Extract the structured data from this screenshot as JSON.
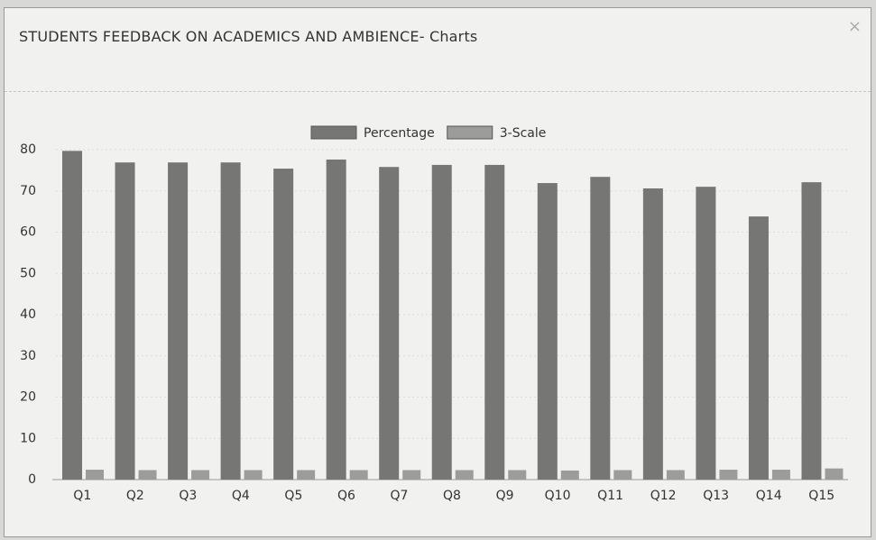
{
  "modal": {
    "title": "STUDENTS FEEDBACK ON ACADEMICS AND AMBIENCE- Charts",
    "close": "×"
  },
  "chart_data": {
    "type": "bar",
    "categories": [
      "Q1",
      "Q2",
      "Q3",
      "Q4",
      "Q5",
      "Q6",
      "Q7",
      "Q8",
      "Q9",
      "Q10",
      "Q11",
      "Q12",
      "Q13",
      "Q14",
      "Q15"
    ],
    "series": [
      {
        "name": "Percentage",
        "color": "#767674",
        "values": [
          79.7,
          76.9,
          76.9,
          76.9,
          75.4,
          77.6,
          75.8,
          76.3,
          76.3,
          71.9,
          73.4,
          70.6,
          71.0,
          63.8,
          72.1
        ]
      },
      {
        "name": "3-Scale",
        "color": "#9c9c9a",
        "values": [
          2.4,
          2.3,
          2.3,
          2.3,
          2.3,
          2.3,
          2.3,
          2.3,
          2.3,
          2.2,
          2.3,
          2.3,
          2.4,
          2.4,
          2.7
        ]
      }
    ],
    "ylim": [
      0,
      80
    ],
    "yticks": [
      0,
      10,
      20,
      30,
      40,
      50,
      60,
      70,
      80
    ],
    "grid": true,
    "legend": "top"
  }
}
